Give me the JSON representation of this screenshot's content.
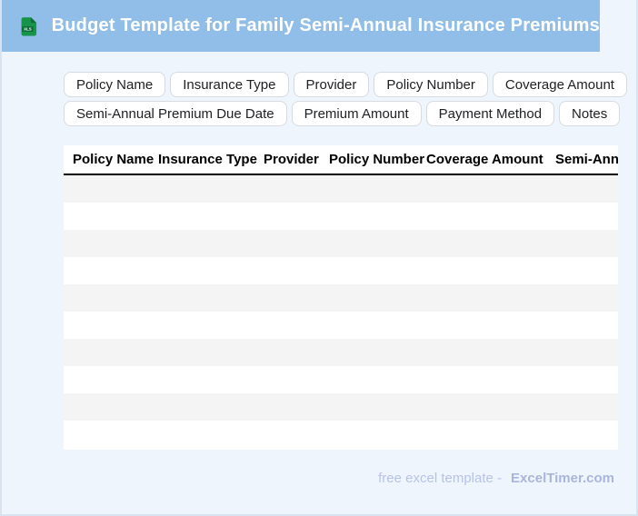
{
  "header": {
    "title": "Budget Template for Family Semi-Annual Insurance Premiums",
    "file_badge": "XLS"
  },
  "chips": {
    "rows": [
      [
        "Policy Name",
        "Insurance Type",
        "Provider",
        "Policy Number",
        "Coverage Amount"
      ],
      [
        "Semi-Annual Premium Due Date",
        "Premium Amount",
        "Payment Method",
        "Notes"
      ]
    ]
  },
  "table": {
    "columns": [
      "Policy Name",
      "Insurance Type",
      "Provider",
      "Policy Number",
      "Coverage Amount",
      "Semi-Annual Premium Due Date"
    ],
    "row_count": 10,
    "rows": []
  },
  "footer": {
    "prefix": "free excel template -",
    "brand": "ExcelTimer.com"
  },
  "colors": {
    "header_bg": "#90bee9",
    "page_bg": "#eef5fd",
    "row_stripe": "#f4f4f5",
    "icon_green": "#18944a",
    "icon_dark_green": "#0c6e36",
    "header_underline": "#000000",
    "footer_prefix": "#b7c2ea",
    "footer_brand": "#a9b5dc"
  }
}
